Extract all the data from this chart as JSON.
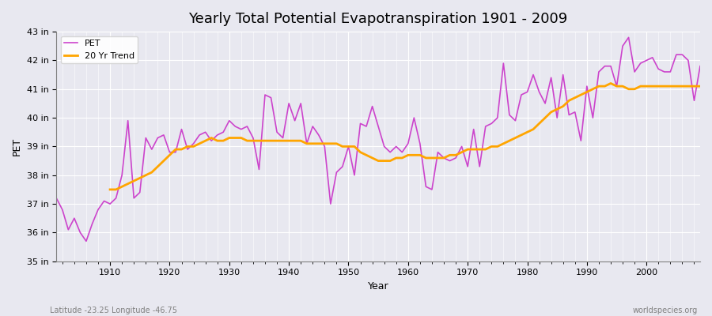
{
  "title": "Yearly Total Potential Evapotranspiration 1901 - 2009",
  "xlabel": "Year",
  "ylabel": "PET",
  "xlim": [
    1901,
    2009
  ],
  "ylim": [
    35,
    43
  ],
  "yticks": [
    35,
    36,
    37,
    38,
    39,
    40,
    41,
    42,
    43
  ],
  "ytick_labels": [
    "35 in",
    "36 in",
    "37 in",
    "38 in",
    "39 in",
    "40 in",
    "41 in",
    "42 in",
    "43 in"
  ],
  "xticks": [
    1910,
    1920,
    1930,
    1940,
    1950,
    1960,
    1970,
    1980,
    1990,
    2000
  ],
  "pet_color": "#CC44CC",
  "trend_color": "#FFA500",
  "bg_color": "#E8E8F0",
  "subtitle_left": "Latitude -23.25 Longitude -46.75",
  "subtitle_right": "worldspecies.org",
  "legend_labels": [
    "PET",
    "20 Yr Trend"
  ],
  "years": [
    1901,
    1902,
    1903,
    1904,
    1905,
    1906,
    1907,
    1908,
    1909,
    1910,
    1911,
    1912,
    1913,
    1914,
    1915,
    1916,
    1917,
    1918,
    1919,
    1920,
    1921,
    1922,
    1923,
    1924,
    1925,
    1926,
    1927,
    1928,
    1929,
    1930,
    1931,
    1932,
    1933,
    1934,
    1935,
    1936,
    1937,
    1938,
    1939,
    1940,
    1941,
    1942,
    1943,
    1944,
    1945,
    1946,
    1947,
    1948,
    1949,
    1950,
    1951,
    1952,
    1953,
    1954,
    1955,
    1956,
    1957,
    1958,
    1959,
    1960,
    1961,
    1962,
    1963,
    1964,
    1965,
    1966,
    1967,
    1968,
    1969,
    1970,
    1971,
    1972,
    1973,
    1974,
    1975,
    1976,
    1977,
    1978,
    1979,
    1980,
    1981,
    1982,
    1983,
    1984,
    1985,
    1986,
    1987,
    1988,
    1989,
    1990,
    1991,
    1992,
    1993,
    1994,
    1995,
    1996,
    1997,
    1998,
    1999,
    2000,
    2001,
    2002,
    2003,
    2004,
    2005,
    2006,
    2007,
    2008,
    2009
  ],
  "pet_values": [
    37.2,
    36.8,
    36.1,
    36.5,
    36.0,
    35.7,
    36.3,
    36.8,
    37.1,
    37.0,
    37.2,
    38.0,
    39.9,
    37.2,
    37.4,
    39.3,
    38.9,
    39.3,
    39.4,
    38.8,
    38.8,
    39.6,
    38.9,
    39.1,
    39.4,
    39.5,
    39.2,
    39.4,
    39.5,
    39.9,
    39.7,
    39.6,
    39.7,
    39.3,
    38.2,
    40.8,
    40.7,
    39.5,
    39.3,
    40.5,
    39.9,
    40.5,
    39.1,
    39.7,
    39.4,
    39.0,
    37.0,
    38.1,
    38.3,
    39.0,
    38.0,
    39.8,
    39.7,
    40.4,
    39.7,
    39.0,
    38.8,
    39.0,
    38.8,
    39.1,
    40.0,
    39.1,
    37.6,
    37.5,
    38.8,
    38.6,
    38.5,
    38.6,
    39.0,
    38.3,
    39.6,
    38.3,
    39.7,
    39.8,
    40.0,
    41.9,
    40.1,
    39.9,
    40.8,
    40.9,
    41.5,
    40.9,
    40.5,
    41.4,
    40.0,
    41.5,
    40.1,
    40.2,
    39.2,
    41.1,
    40.0,
    41.6,
    41.8,
    41.8,
    41.1,
    42.5,
    42.8,
    41.6,
    41.9,
    42.0,
    42.1,
    41.7,
    41.6,
    41.6,
    42.2,
    42.2,
    42.0,
    40.6,
    41.8
  ],
  "trend_years": [
    1910,
    1911,
    1912,
    1913,
    1914,
    1915,
    1916,
    1917,
    1918,
    1919,
    1920,
    1921,
    1922,
    1923,
    1924,
    1925,
    1926,
    1927,
    1928,
    1929,
    1930,
    1931,
    1932,
    1933,
    1934,
    1935,
    1936,
    1937,
    1938,
    1939,
    1940,
    1941,
    1942,
    1943,
    1944,
    1945,
    1946,
    1947,
    1948,
    1949,
    1950,
    1951,
    1952,
    1953,
    1954,
    1955,
    1956,
    1957,
    1958,
    1959,
    1960,
    1961,
    1962,
    1963,
    1964,
    1965,
    1966,
    1967,
    1968,
    1969,
    1970,
    1971,
    1972,
    1973,
    1974,
    1975,
    1976,
    1977,
    1978,
    1979,
    1980,
    1981,
    1982,
    1983,
    1984,
    1985,
    1986,
    1987,
    1988,
    1989,
    1990,
    1991,
    1992,
    1993,
    1994,
    1995,
    1996,
    1997,
    1998,
    1999,
    2000,
    2001,
    2002,
    2003,
    2004,
    2005,
    2006,
    2007,
    2008,
    2009
  ],
  "trend_values": [
    37.5,
    37.5,
    37.6,
    37.7,
    37.8,
    37.9,
    38.0,
    38.1,
    38.3,
    38.5,
    38.7,
    38.9,
    38.9,
    39.0,
    39.0,
    39.1,
    39.2,
    39.3,
    39.2,
    39.2,
    39.3,
    39.3,
    39.3,
    39.2,
    39.2,
    39.2,
    39.2,
    39.2,
    39.2,
    39.2,
    39.2,
    39.2,
    39.2,
    39.1,
    39.1,
    39.1,
    39.1,
    39.1,
    39.1,
    39.0,
    39.0,
    39.0,
    38.8,
    38.7,
    38.6,
    38.5,
    38.5,
    38.5,
    38.6,
    38.6,
    38.7,
    38.7,
    38.7,
    38.6,
    38.6,
    38.6,
    38.6,
    38.7,
    38.7,
    38.8,
    38.9,
    38.9,
    38.9,
    38.9,
    39.0,
    39.0,
    39.1,
    39.2,
    39.3,
    39.4,
    39.5,
    39.6,
    39.8,
    40.0,
    40.2,
    40.3,
    40.4,
    40.6,
    40.7,
    40.8,
    40.9,
    41.0,
    41.1,
    41.1,
    41.2,
    41.1,
    41.1,
    41.0,
    41.0,
    41.1,
    41.1,
    41.1,
    41.1,
    41.1,
    41.1,
    41.1,
    41.1,
    41.1,
    41.1,
    41.1
  ]
}
